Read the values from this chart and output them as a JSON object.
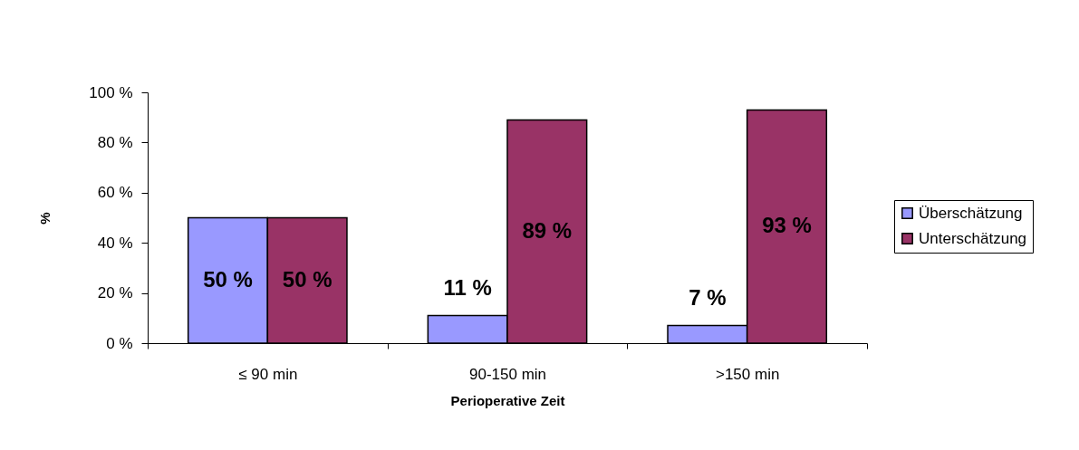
{
  "chart_data": {
    "type": "bar",
    "xlabel": "Perioperative Zeit",
    "ylabel": "%",
    "categories": [
      "≤ 90 min",
      "90-150 min",
      ">150 min"
    ],
    "series": [
      {
        "name": "Überschätzung",
        "color": "#9999ff",
        "values": [
          50,
          11,
          7
        ],
        "value_labels": [
          "50 %",
          "11 %",
          "7 %"
        ]
      },
      {
        "name": "Unterschätzung",
        "color": "#993366",
        "values": [
          50,
          89,
          93
        ],
        "value_labels": [
          "50 %",
          "89 %",
          "93 %"
        ]
      }
    ],
    "ylim": [
      0,
      100
    ],
    "yticks": [
      {
        "value": 0,
        "label": "0 %"
      },
      {
        "value": 20,
        "label": "20 %"
      },
      {
        "value": 40,
        "label": "40 %"
      },
      {
        "value": 60,
        "label": "60 %"
      },
      {
        "value": 80,
        "label": "80 %"
      },
      {
        "value": 100,
        "label": "100 %"
      }
    ],
    "legend": "right",
    "grid": false
  }
}
